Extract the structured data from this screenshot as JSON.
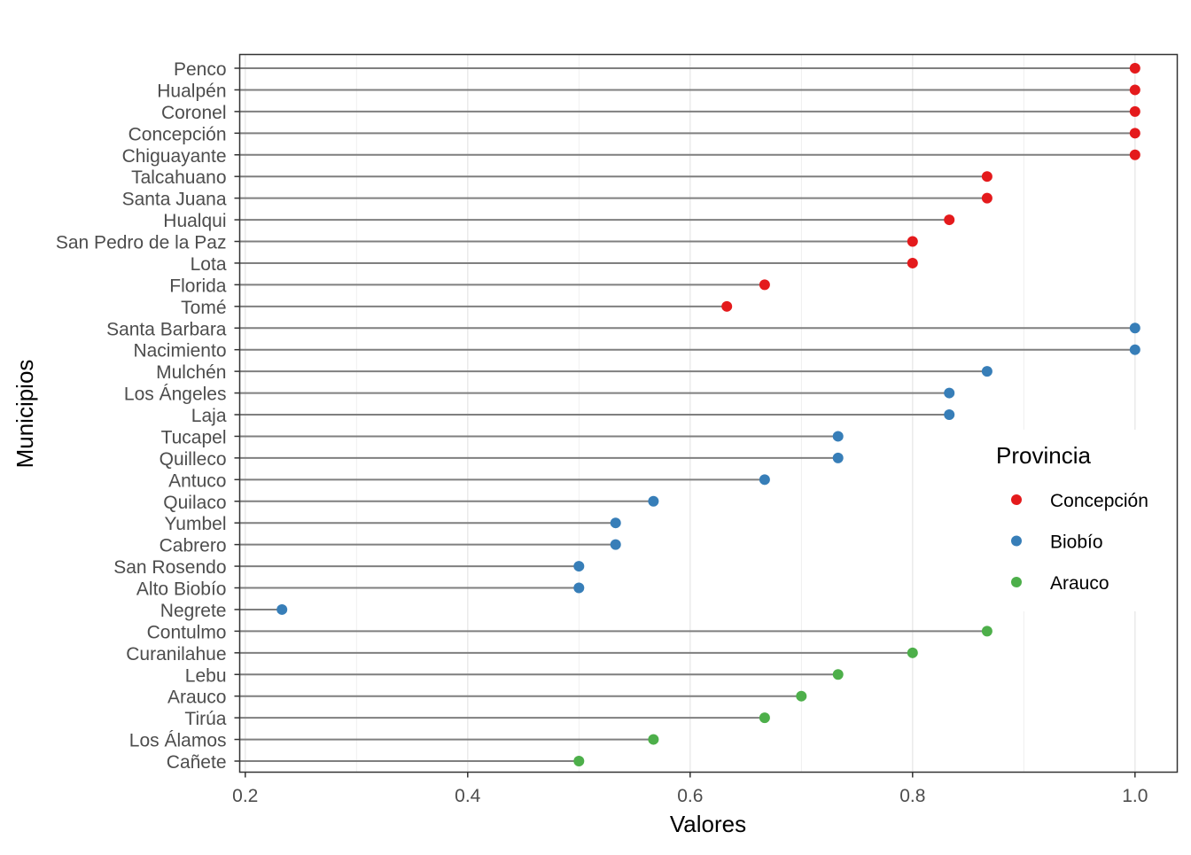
{
  "chart_data": {
    "type": "lollipop",
    "title": "",
    "xlabel": "Valores",
    "ylabel": "Municipios",
    "xlim": [
      0.195,
      1.038
    ],
    "xticks": [
      0.2,
      0.4,
      0.6,
      0.8,
      1.0
    ],
    "xtick_labels": [
      "0.2",
      "0.4",
      "0.6",
      "0.8",
      "1.0"
    ],
    "grid": true,
    "legend": {
      "title": "Provincia",
      "placement": "right",
      "entries": [
        {
          "name": "Concepción",
          "color": "#E41A1C"
        },
        {
          "name": "Biobío",
          "color": "#377EB8"
        },
        {
          "name": "Arauco",
          "color": "#4DAF4A"
        }
      ]
    },
    "points": [
      {
        "municipio": "Penco",
        "valor": 1.0,
        "provincia": "Concepción"
      },
      {
        "municipio": "Hualpén",
        "valor": 1.0,
        "provincia": "Concepción"
      },
      {
        "municipio": "Coronel",
        "valor": 1.0,
        "provincia": "Concepción"
      },
      {
        "municipio": "Concepción",
        "valor": 1.0,
        "provincia": "Concepción"
      },
      {
        "municipio": "Chiguayante",
        "valor": 1.0,
        "provincia": "Concepción"
      },
      {
        "municipio": "Talcahuano",
        "valor": 0.867,
        "provincia": "Concepción"
      },
      {
        "municipio": "Santa Juana",
        "valor": 0.867,
        "provincia": "Concepción"
      },
      {
        "municipio": "Hualqui",
        "valor": 0.833,
        "provincia": "Concepción"
      },
      {
        "municipio": "San Pedro de la Paz",
        "valor": 0.8,
        "provincia": "Concepción"
      },
      {
        "municipio": "Lota",
        "valor": 0.8,
        "provincia": "Concepción"
      },
      {
        "municipio": "Florida",
        "valor": 0.667,
        "provincia": "Concepción"
      },
      {
        "municipio": "Tomé",
        "valor": 0.633,
        "provincia": "Concepción"
      },
      {
        "municipio": "Santa Barbara",
        "valor": 1.0,
        "provincia": "Biobío"
      },
      {
        "municipio": "Nacimiento",
        "valor": 1.0,
        "provincia": "Biobío"
      },
      {
        "municipio": "Mulchén",
        "valor": 0.867,
        "provincia": "Biobío"
      },
      {
        "municipio": "Los Ángeles",
        "valor": 0.833,
        "provincia": "Biobío"
      },
      {
        "municipio": "Laja",
        "valor": 0.833,
        "provincia": "Biobío"
      },
      {
        "municipio": "Tucapel",
        "valor": 0.733,
        "provincia": "Biobío"
      },
      {
        "municipio": "Quilleco",
        "valor": 0.733,
        "provincia": "Biobío"
      },
      {
        "municipio": "Antuco",
        "valor": 0.667,
        "provincia": "Biobío"
      },
      {
        "municipio": "Quilaco",
        "valor": 0.567,
        "provincia": "Biobío"
      },
      {
        "municipio": "Yumbel",
        "valor": 0.533,
        "provincia": "Biobío"
      },
      {
        "municipio": "Cabrero",
        "valor": 0.533,
        "provincia": "Biobío"
      },
      {
        "municipio": "San Rosendo",
        "valor": 0.5,
        "provincia": "Biobío"
      },
      {
        "municipio": "Alto Biobío",
        "valor": 0.5,
        "provincia": "Biobío"
      },
      {
        "municipio": "Negrete",
        "valor": 0.233,
        "provincia": "Biobío"
      },
      {
        "municipio": "Contulmo",
        "valor": 0.867,
        "provincia": "Arauco"
      },
      {
        "municipio": "Curanilahue",
        "valor": 0.8,
        "provincia": "Arauco"
      },
      {
        "municipio": "Lebu",
        "valor": 0.733,
        "provincia": "Arauco"
      },
      {
        "municipio": "Arauco",
        "valor": 0.7,
        "provincia": "Arauco"
      },
      {
        "municipio": "Tirúa",
        "valor": 0.667,
        "provincia": "Arauco"
      },
      {
        "municipio": "Los Álamos",
        "valor": 0.567,
        "provincia": "Arauco"
      },
      {
        "municipio": "Cañete",
        "valor": 0.5,
        "provincia": "Arauco"
      }
    ]
  }
}
